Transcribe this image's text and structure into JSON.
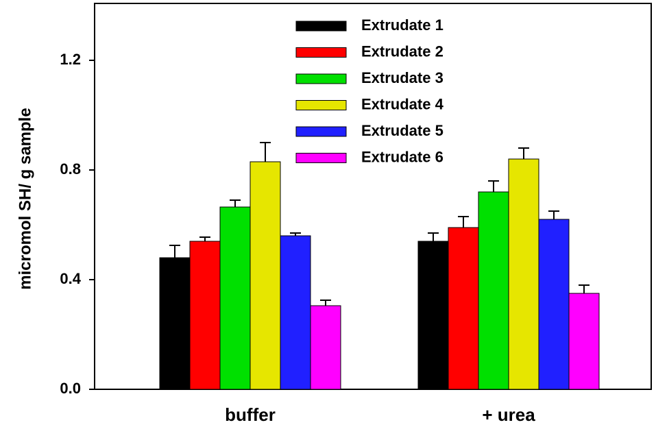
{
  "chart_data": {
    "type": "bar",
    "y_label": "micromol SH/ g sample",
    "categories": [
      "buffer",
      "+ urea"
    ],
    "series": [
      {
        "name": "Extrudate 1",
        "color": "#000000",
        "values": [
          0.48,
          0.54
        ],
        "errors": [
          0.045,
          0.03
        ]
      },
      {
        "name": "Extrudate 2",
        "color": "#ff0000",
        "values": [
          0.54,
          0.59
        ],
        "errors": [
          0.015,
          0.04
        ]
      },
      {
        "name": "Extrudate 3",
        "color": "#00e000",
        "values": [
          0.665,
          0.72
        ],
        "errors": [
          0.025,
          0.04
        ]
      },
      {
        "name": "Extrudate 4",
        "color": "#e6e600",
        "values": [
          0.83,
          0.84
        ],
        "errors": [
          0.07,
          0.04
        ]
      },
      {
        "name": "Extrudate 5",
        "color": "#2020ff",
        "values": [
          0.56,
          0.62
        ],
        "errors": [
          0.01,
          0.03
        ]
      },
      {
        "name": "Extrudate 6",
        "color": "#ff00ff",
        "values": [
          0.305,
          0.35
        ],
        "errors": [
          0.02,
          0.03
        ]
      }
    ],
    "ylim": [
      0,
      1.4
    ],
    "yticks": [
      {
        "value": 0,
        "label": "0.0"
      },
      0.4,
      0.8,
      1.2
    ]
  }
}
